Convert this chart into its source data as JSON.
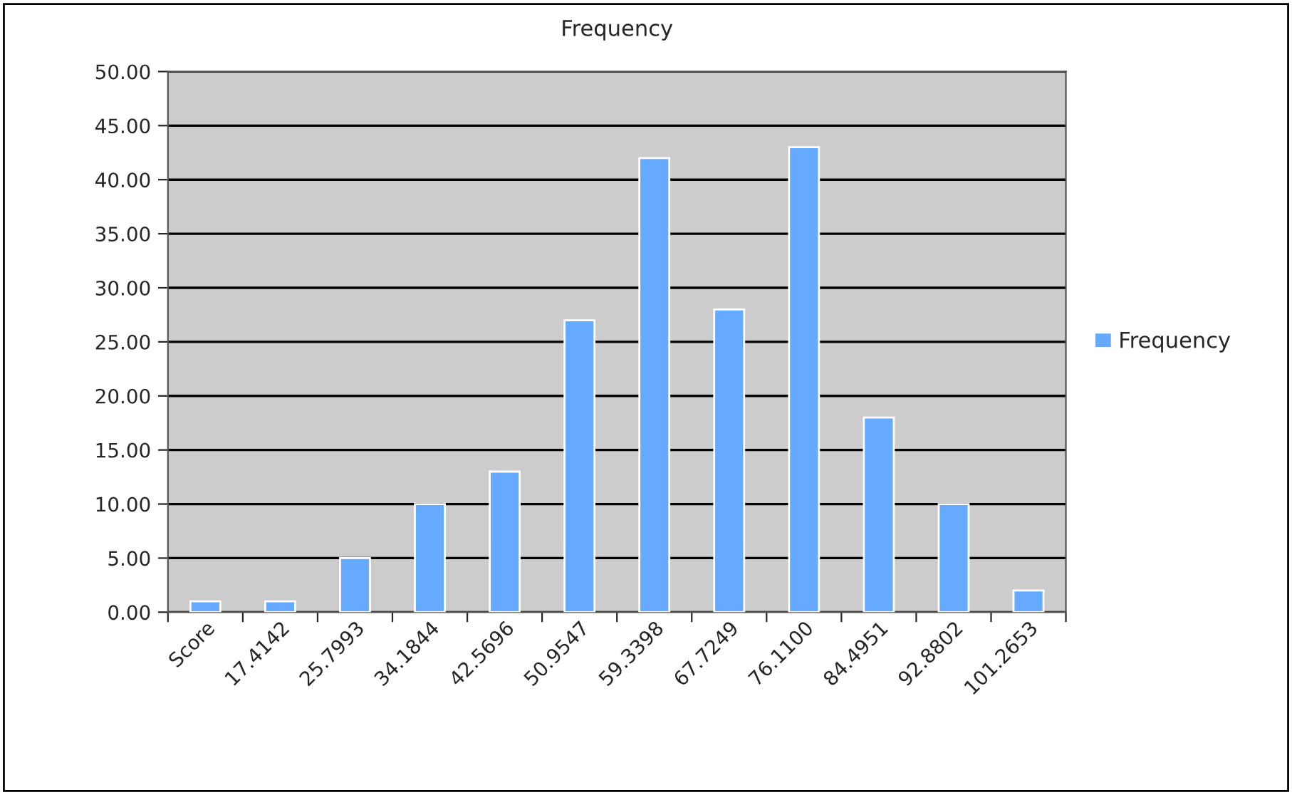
{
  "chart_data": {
    "type": "bar",
    "title": "Frequency",
    "categories": [
      "Score",
      "17.4142",
      "25.7993",
      "34.1844",
      "42.5696",
      "50.9547",
      "59.3398",
      "67.7249",
      "76.1100",
      "84.4951",
      "92.8802",
      "101.2653"
    ],
    "series": [
      {
        "name": "Frequency",
        "color": "#66aaff",
        "values": [
          1,
          1,
          5,
          10,
          13,
          27,
          42,
          28,
          43,
          18,
          10,
          2
        ]
      }
    ],
    "ylim": [
      0,
      50
    ],
    "yticks": [
      {
        "value": 0,
        "label": "0.00"
      },
      {
        "value": 5,
        "label": "5.00"
      },
      {
        "value": 10,
        "label": "10.00"
      },
      {
        "value": 15,
        "label": "15.00"
      },
      {
        "value": 20,
        "label": "20.00"
      },
      {
        "value": 25,
        "label": "25.00"
      },
      {
        "value": 30,
        "label": "30.00"
      },
      {
        "value": 35,
        "label": "35.00"
      },
      {
        "value": 40,
        "label": "40.00"
      },
      {
        "value": 45,
        "label": "45.00"
      },
      {
        "value": 50,
        "label": "50.00"
      }
    ],
    "grid": "y",
    "legend": "right"
  }
}
